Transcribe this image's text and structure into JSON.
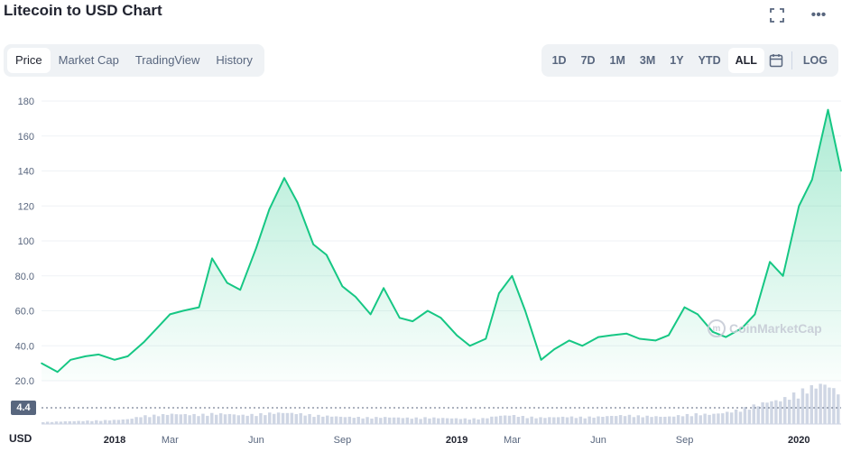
{
  "header": {
    "title": "Litecoin to USD Chart",
    "fullscreen_icon": "fullscreen-icon",
    "more_icon": "more-horizontal-icon",
    "more_label": "•••"
  },
  "tabs": [
    {
      "label": "Price",
      "active": true
    },
    {
      "label": "Market Cap",
      "active": false
    },
    {
      "label": "TradingView",
      "active": false
    },
    {
      "label": "History",
      "active": false
    }
  ],
  "ranges": [
    {
      "label": "1D",
      "active": false
    },
    {
      "label": "7D",
      "active": false
    },
    {
      "label": "1M",
      "active": false
    },
    {
      "label": "3M",
      "active": false
    },
    {
      "label": "1Y",
      "active": false
    },
    {
      "label": "YTD",
      "active": false
    },
    {
      "label": "ALL",
      "active": true
    }
  ],
  "calendar_icon": "calendar-icon",
  "log_label": "LOG",
  "watermark": "CoinMarketCap",
  "current_badge": "4.4",
  "currency_label": "USD",
  "colors": {
    "line": "#16c784",
    "fill_top": "#16c784",
    "volume": "#cfd6e4",
    "grid": "#eff2f5",
    "axis_text": "#58667e"
  },
  "chart_data": {
    "type": "area",
    "ylim": [
      20,
      180
    ],
    "yticks": [
      "20.0",
      "40.0",
      "60.0",
      "80.0",
      "100",
      "120",
      "140",
      "160",
      "180"
    ],
    "x_ticks": [
      {
        "label": "2018",
        "date": "2018-01",
        "bold": true
      },
      {
        "label": "Mar",
        "date": "2018-03",
        "bold": false
      },
      {
        "label": "Jun",
        "date": "2018-06",
        "bold": false
      },
      {
        "label": "Sep",
        "date": "2018-09",
        "bold": false
      },
      {
        "label": "2019",
        "date": "2019-01",
        "bold": true
      },
      {
        "label": "Mar",
        "date": "2019-03",
        "bold": false
      },
      {
        "label": "Jun",
        "date": "2019-06",
        "bold": false
      },
      {
        "label": "Sep",
        "date": "2019-09",
        "bold": false
      },
      {
        "label": "2020",
        "date": "2020-01",
        "bold": true
      }
    ],
    "series": [
      {
        "x": [
          "2017-10-15",
          "2017-11-01",
          "2017-11-15",
          "2017-12-01",
          "2017-12-15",
          "2018-01-01",
          "2018-01-15",
          "2018-02-01",
          "2018-02-15",
          "2018-03-01",
          "2018-03-15",
          "2018-04-01",
          "2018-04-15",
          "2018-05-01",
          "2018-05-15",
          "2018-06-01",
          "2018-06-15",
          "2018-07-01",
          "2018-07-15",
          "2018-08-01",
          "2018-08-15",
          "2018-09-01",
          "2018-09-15",
          "2018-10-01",
          "2018-10-15",
          "2018-11-01",
          "2018-11-15",
          "2018-12-01",
          "2018-12-15",
          "2019-01-01",
          "2019-01-15",
          "2019-02-01",
          "2019-02-15",
          "2019-03-01",
          "2019-03-15",
          "2019-04-01",
          "2019-04-15",
          "2019-05-01",
          "2019-05-15",
          "2019-06-01",
          "2019-06-15",
          "2019-07-01",
          "2019-07-15",
          "2019-08-01",
          "2019-08-15",
          "2019-09-01",
          "2019-09-15",
          "2019-10-01",
          "2019-10-15",
          "2019-11-01",
          "2019-11-15",
          "2019-12-01",
          "2019-12-15",
          "2020-01-01",
          "2020-01-15",
          "2020-02-01",
          "2020-02-15"
        ],
        "values": [
          30,
          25,
          32,
          34,
          35,
          32,
          34,
          42,
          50,
          58,
          60,
          62,
          90,
          76,
          72,
          96,
          118,
          136,
          122,
          98,
          92,
          74,
          68,
          58,
          73,
          56,
          54,
          60,
          56,
          46,
          40,
          44,
          70,
          80,
          60,
          32,
          38,
          43,
          40,
          45,
          46,
          47,
          44,
          43,
          46,
          62,
          58,
          48,
          45,
          50,
          58,
          88,
          80,
          120,
          135,
          175,
          140
        ]
      }
    ],
    "volume_relative": [
      0.05,
      0.06,
      0.07,
      0.08,
      0.09,
      0.1,
      0.12,
      0.2,
      0.22,
      0.25,
      0.24,
      0.23,
      0.26,
      0.25,
      0.22,
      0.24,
      0.27,
      0.28,
      0.26,
      0.22,
      0.2,
      0.18,
      0.17,
      0.16,
      0.17,
      0.16,
      0.15,
      0.16,
      0.15,
      0.14,
      0.13,
      0.14,
      0.2,
      0.22,
      0.18,
      0.16,
      0.17,
      0.18,
      0.17,
      0.18,
      0.2,
      0.22,
      0.2,
      0.19,
      0.18,
      0.22,
      0.25,
      0.24,
      0.28,
      0.35,
      0.45,
      0.55,
      0.6,
      0.75,
      0.9,
      1.0,
      0.8
    ]
  }
}
